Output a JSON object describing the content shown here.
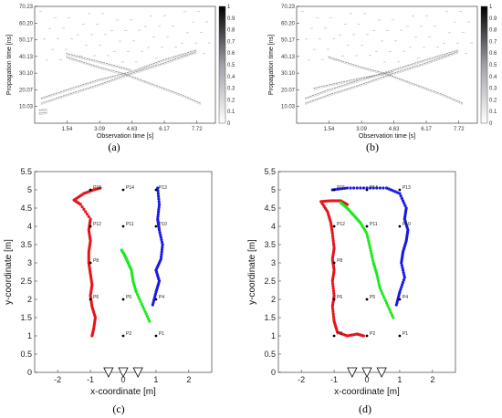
{
  "chart_data": [
    {
      "id": "a",
      "type": "heatmap",
      "caption": "(a)",
      "xlabel": "Observation time [s]",
      "ylabel": "Propagation time [ns]",
      "xticks": [
        "1.54",
        "3.09",
        "4.63",
        "6.17",
        "7.72"
      ],
      "yticks": [
        "10.03",
        "20.07",
        "30.10",
        "40.13",
        "50.17",
        "60.20",
        "70.23"
      ],
      "xlim": [
        0,
        8.6
      ],
      "ylim": [
        0,
        70.23
      ],
      "colorbar_ticks": [
        "1",
        "0.9",
        "0.8",
        "0.7",
        "0.6",
        "0.5",
        "0.4",
        "0.3",
        "0.2",
        "0.1",
        "0"
      ],
      "traces": [
        {
          "x": [
            0.3,
            1.5,
            3.0,
            4.6,
            6.1,
            7.7
          ],
          "y": [
            12,
            17,
            23,
            30,
            36,
            43
          ]
        },
        {
          "x": [
            0.3,
            1.5,
            3.0,
            4.6,
            6.1,
            7.7
          ],
          "y": [
            15,
            20,
            26,
            31,
            38,
            44
          ]
        },
        {
          "x": [
            1.5,
            3.0,
            4.2,
            5.5,
            7.0,
            7.9
          ],
          "y": [
            40,
            34,
            30,
            24,
            17,
            12
          ]
        },
        {
          "x": [
            1.5,
            3.1,
            4.6
          ],
          "y": [
            42,
            37,
            32
          ]
        },
        {
          "x": [
            0.2,
            0.6
          ],
          "y": [
            6,
            6.5
          ]
        },
        {
          "x": [
            0.2,
            0.6
          ],
          "y": [
            8,
            8.3
          ]
        }
      ]
    },
    {
      "id": "b",
      "type": "heatmap",
      "caption": "(b)",
      "xlabel": "Observation time [s]",
      "ylabel": "Propagation time [ns]",
      "xticks": [
        "1.54",
        "3.09",
        "4.63",
        "6.17",
        "7.72"
      ],
      "yticks": [
        "10.03",
        "20.07",
        "30.10",
        "40.13",
        "50.17",
        "60.20",
        "70.23"
      ],
      "xlim": [
        0,
        8.6
      ],
      "ylim": [
        0,
        70.23
      ],
      "colorbar_ticks": [
        "1",
        "0.9",
        "0.8",
        "0.7",
        "0.6",
        "0.5",
        "0.4",
        "0.3",
        "0.2",
        "0.1",
        "0"
      ],
      "traces": [
        {
          "x": [
            0.4,
            1.5,
            3.0,
            4.6,
            6.1,
            7.7
          ],
          "y": [
            12,
            17,
            23,
            30,
            36,
            43
          ]
        },
        {
          "x": [
            0.4,
            1.5,
            3.0,
            4.6,
            6.1,
            7.7
          ],
          "y": [
            15,
            20,
            26,
            32,
            38,
            44
          ]
        },
        {
          "x": [
            1.5,
            3.0,
            4.2,
            5.5,
            7.0,
            7.9
          ],
          "y": [
            40,
            34,
            30,
            24,
            17,
            12
          ]
        },
        {
          "x": [
            0.8,
            1.5,
            3.0,
            4.6
          ],
          "y": [
            21,
            23,
            27,
            31
          ]
        }
      ]
    },
    {
      "id": "c",
      "type": "scatter",
      "caption": "(c)",
      "xlabel": "x-coordinate [m]",
      "ylabel": "y-coordinate [m]",
      "xlim": [
        -2.7,
        2.7
      ],
      "ylim": [
        0,
        5.5
      ],
      "xticks": [
        "-2",
        "-1",
        "0",
        "1",
        "2"
      ],
      "yticks": [
        "0",
        "0.5",
        "1",
        "1.5",
        "2",
        "2.5",
        "3",
        "3.5",
        "4",
        "4.5",
        "5",
        "5.5"
      ],
      "sensors_x": [
        -0.45,
        0,
        0.45
      ],
      "points": [
        {
          "label": "P1",
          "x": 1,
          "y": 1
        },
        {
          "label": "P2",
          "x": 0,
          "y": 1
        },
        {
          "label": "P4",
          "x": 1,
          "y": 2
        },
        {
          "label": "P5",
          "x": 0,
          "y": 2
        },
        {
          "label": "P6",
          "x": -1,
          "y": 2
        },
        {
          "label": "P8",
          "x": -1,
          "y": 3
        },
        {
          "label": "P10",
          "x": 1,
          "y": 4
        },
        {
          "label": "P11",
          "x": 0,
          "y": 4
        },
        {
          "label": "P12",
          "x": -1,
          "y": 4
        },
        {
          "label": "P13",
          "x": 1,
          "y": 5
        },
        {
          "label": "P14",
          "x": 0,
          "y": 5
        },
        {
          "label": "P15",
          "x": -1,
          "y": 5
        }
      ],
      "series": [
        {
          "color": "#e8141b",
          "x": [
            -0.95,
            -0.9,
            -0.85,
            -0.95,
            -1.0,
            -0.95,
            -1.0,
            -1.05,
            -1.05,
            -1.0,
            -1.05,
            -1.0,
            -1.3,
            -1.5,
            -1.2,
            -0.9,
            -0.7
          ],
          "y": [
            1.0,
            1.2,
            1.5,
            1.8,
            2.1,
            2.4,
            2.7,
            3.0,
            3.3,
            3.6,
            3.9,
            4.2,
            4.6,
            4.72,
            4.9,
            5.0,
            5.05
          ]
        },
        {
          "color": "#1ee81e",
          "x": [
            0.8,
            0.6,
            0.4,
            0.3,
            0.25,
            0.15,
            0.05,
            -0.05
          ],
          "y": [
            1.4,
            1.8,
            2.2,
            2.5,
            2.8,
            3.0,
            3.2,
            3.35
          ]
        },
        {
          "color": "#1818e8",
          "x": [
            0.9,
            1.0,
            1.1,
            1.0,
            1.15,
            1.2,
            1.1,
            1.05,
            1.1,
            1.05
          ],
          "y": [
            1.85,
            2.2,
            2.5,
            2.8,
            3.1,
            3.5,
            3.9,
            4.2,
            4.6,
            5.05
          ]
        }
      ]
    },
    {
      "id": "d",
      "type": "scatter",
      "caption": "(d)",
      "xlabel": "x-coordinate [m]",
      "ylabel": "y-coordinate [m]",
      "xlim": [
        -2.7,
        2.7
      ],
      "ylim": [
        0,
        5.5
      ],
      "xticks": [
        "-2",
        "-1",
        "0",
        "1",
        "2"
      ],
      "yticks": [
        "0",
        "0.5",
        "1",
        "1.5",
        "2",
        "2.5",
        "3",
        "3.5",
        "4",
        "4.5",
        "5",
        "5.5"
      ],
      "sensors_x": [
        -0.45,
        0,
        0.45
      ],
      "points": [
        {
          "label": "P1",
          "x": 1,
          "y": 1
        },
        {
          "label": "P2",
          "x": 0,
          "y": 1
        },
        {
          "label": "P3",
          "x": -1,
          "y": 1
        },
        {
          "label": "P4",
          "x": 1,
          "y": 2
        },
        {
          "label": "P5",
          "x": 0,
          "y": 2
        },
        {
          "label": "P6",
          "x": -1,
          "y": 2
        },
        {
          "label": "P8",
          "x": -1,
          "y": 3
        },
        {
          "label": "P10",
          "x": 1,
          "y": 4
        },
        {
          "label": "P11",
          "x": 0,
          "y": 4
        },
        {
          "label": "P12",
          "x": -1,
          "y": 4
        },
        {
          "label": "P13",
          "x": 1,
          "y": 5
        },
        {
          "label": "P14",
          "x": 0,
          "y": 5
        },
        {
          "label": "P15",
          "x": -1,
          "y": 5
        }
      ],
      "series": [
        {
          "color": "#e8141b",
          "x": [
            -0.1,
            -0.3,
            -0.6,
            -0.9,
            -1.0,
            -1.05,
            -1.0,
            -1.05,
            -1.0,
            -1.05,
            -1.0,
            -1.05,
            -1.1,
            -1.2,
            -1.4,
            -1.1,
            -0.8,
            -0.6
          ],
          "y": [
            1.0,
            1.05,
            1.0,
            1.1,
            1.4,
            1.8,
            2.1,
            2.5,
            2.8,
            3.1,
            3.4,
            3.8,
            4.1,
            4.4,
            4.68,
            4.7,
            4.7,
            4.6
          ]
        },
        {
          "color": "#1ee81e",
          "x": [
            0.8,
            0.6,
            0.4,
            0.3,
            0.2,
            0.1,
            0.0,
            -0.2,
            -0.4,
            -0.6,
            -0.8
          ],
          "y": [
            1.5,
            1.9,
            2.3,
            2.7,
            3.0,
            3.4,
            3.8,
            4.1,
            4.3,
            4.5,
            4.65
          ]
        },
        {
          "color": "#1818e8",
          "x": [
            0.9,
            1.0,
            1.15,
            1.05,
            1.1,
            1.2,
            1.25,
            1.15,
            1.2,
            1.0,
            0.6,
            0.0,
            -0.6,
            -1.05
          ],
          "y": [
            1.85,
            2.2,
            2.6,
            3.0,
            3.3,
            3.6,
            3.9,
            4.2,
            4.5,
            4.9,
            5.05,
            5.05,
            5.05,
            5.0
          ]
        }
      ]
    }
  ]
}
